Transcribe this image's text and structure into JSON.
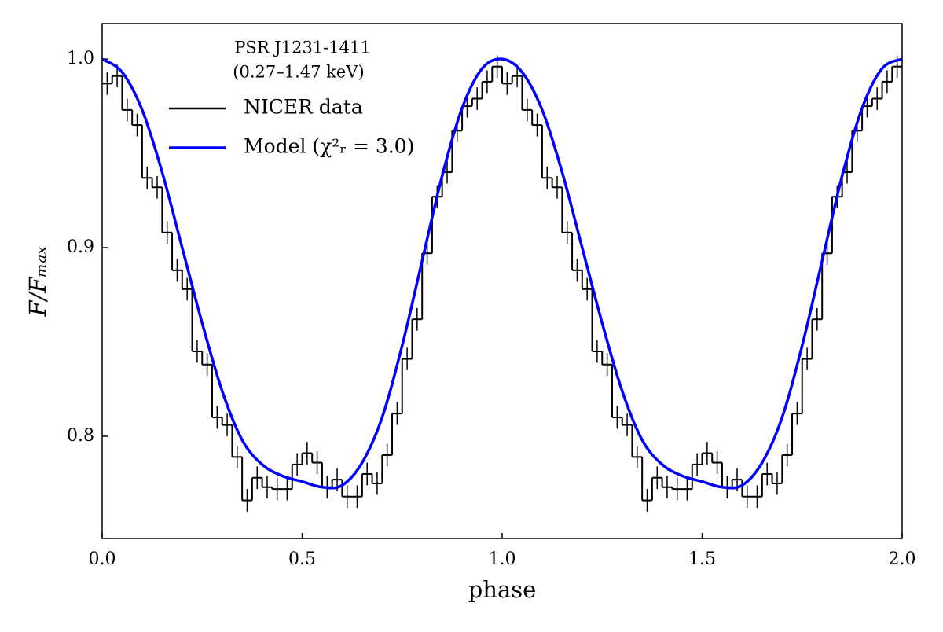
{
  "chart_data": {
    "type": "line",
    "xlabel": "phase",
    "ylabel": "F/Fₘₐₓ",
    "annotation": [
      "PSR J1231-1411",
      "(0.27–1.47 keV)"
    ],
    "xlim": [
      0,
      2
    ],
    "ylim": [
      0.7458,
      1.0188
    ],
    "xticks": [
      {
        "value": 0,
        "label": "0.0"
      },
      0.5,
      {
        "value": 1,
        "label": "1.0"
      },
      1.5,
      {
        "value": 2,
        "label": "2.0"
      }
    ],
    "yticks": [
      0.8,
      0.9,
      {
        "value": 1,
        "label": "1.0"
      }
    ],
    "legend": "upper left",
    "series": [
      {
        "name": "NICER data",
        "color": "#000000",
        "drawstyle": "steps",
        "bins": [
          0,
          0.025,
          0.05,
          0.075,
          0.1,
          0.125,
          0.15,
          0.175,
          0.2,
          0.225,
          0.25,
          0.275,
          0.3,
          0.325,
          0.35,
          0.375,
          0.4,
          0.425,
          0.45,
          0.475,
          0.5,
          0.525,
          0.55,
          0.575,
          0.6,
          0.625,
          0.65,
          0.675,
          0.7,
          0.725,
          0.75,
          0.775,
          0.8,
          0.825,
          0.85,
          0.875,
          0.9,
          0.925,
          0.95,
          0.975,
          1,
          1.025,
          1.05,
          1.075,
          1.1,
          1.125,
          1.15,
          1.175,
          1.2,
          1.225,
          1.25,
          1.275,
          1.3,
          1.325,
          1.35,
          1.375,
          1.4,
          1.425,
          1.45,
          1.475,
          1.5,
          1.525,
          1.55,
          1.575,
          1.6,
          1.625,
          1.65,
          1.675,
          1.7,
          1.725,
          1.75,
          1.775,
          1.8,
          1.825,
          1.85,
          1.875,
          1.9,
          1.925,
          1.95,
          1.975,
          2
        ],
        "values": [
          0.987,
          0.991,
          0.973,
          0.965,
          0.937,
          0.932,
          0.908,
          0.888,
          0.878,
          0.845,
          0.838,
          0.81,
          0.806,
          0.789,
          0.766,
          0.778,
          0.773,
          0.772,
          0.772,
          0.785,
          0.791,
          0.786,
          0.773,
          0.777,
          0.768,
          0.768,
          0.78,
          0.775,
          0.79,
          0.812,
          0.841,
          0.862,
          0.897,
          0.927,
          0.94,
          0.962,
          0.975,
          0.979,
          0.988,
          0.996,
          0.987,
          0.991,
          0.973,
          0.965,
          0.937,
          0.932,
          0.908,
          0.888,
          0.878,
          0.845,
          0.838,
          0.81,
          0.806,
          0.789,
          0.766,
          0.778,
          0.773,
          0.772,
          0.772,
          0.785,
          0.791,
          0.786,
          0.773,
          0.777,
          0.768,
          0.768,
          0.78,
          0.775,
          0.79,
          0.812,
          0.841,
          0.862,
          0.897,
          0.927,
          0.94,
          0.962,
          0.975,
          0.979,
          0.988,
          0.996
        ],
        "errors": [
          0.006,
          0.006,
          0.006,
          0.006,
          0.006,
          0.006,
          0.006,
          0.006,
          0.006,
          0.006,
          0.006,
          0.006,
          0.006,
          0.006,
          0.006,
          0.006,
          0.006,
          0.006,
          0.006,
          0.006,
          0.006,
          0.006,
          0.006,
          0.006,
          0.006,
          0.006,
          0.006,
          0.006,
          0.006,
          0.006,
          0.006,
          0.006,
          0.006,
          0.006,
          0.006,
          0.006,
          0.006,
          0.006,
          0.006,
          0.006,
          0.006,
          0.006,
          0.006,
          0.006,
          0.006,
          0.006,
          0.006,
          0.006,
          0.006,
          0.006,
          0.006,
          0.006,
          0.006,
          0.006,
          0.006,
          0.006,
          0.006,
          0.006,
          0.006,
          0.006,
          0.006,
          0.006,
          0.006,
          0.006,
          0.006,
          0.006,
          0.006,
          0.006,
          0.006,
          0.006,
          0.006,
          0.006,
          0.006,
          0.006,
          0.006,
          0.006,
          0.006,
          0.006,
          0.006,
          0.006
        ]
      },
      {
        "name": "Model (χ²ᵣ = 3.0)",
        "color": "#0000ff",
        "x": [
          0,
          0.05,
          0.1,
          0.15,
          0.2,
          0.25,
          0.3,
          0.35,
          0.4,
          0.45,
          0.5,
          0.55,
          0.6,
          0.65,
          0.7,
          0.75,
          0.8,
          0.85,
          0.9,
          0.95,
          1,
          1.05,
          1.1,
          1.15,
          1.2,
          1.25,
          1.3,
          1.35,
          1.4,
          1.45,
          1.5,
          1.55,
          1.6,
          1.65,
          1.7,
          1.75,
          1.8,
          1.85,
          1.9,
          1.95,
          2
        ],
        "values": [
          1.0,
          0.993,
          0.973,
          0.94,
          0.9,
          0.86,
          0.824,
          0.798,
          0.785,
          0.779,
          0.776,
          0.773,
          0.774,
          0.786,
          0.81,
          0.848,
          0.893,
          0.938,
          0.974,
          0.995,
          1.0,
          0.993,
          0.973,
          0.94,
          0.9,
          0.86,
          0.824,
          0.798,
          0.785,
          0.779,
          0.776,
          0.773,
          0.774,
          0.786,
          0.81,
          0.848,
          0.893,
          0.938,
          0.974,
          0.995,
          1.0
        ]
      }
    ]
  }
}
